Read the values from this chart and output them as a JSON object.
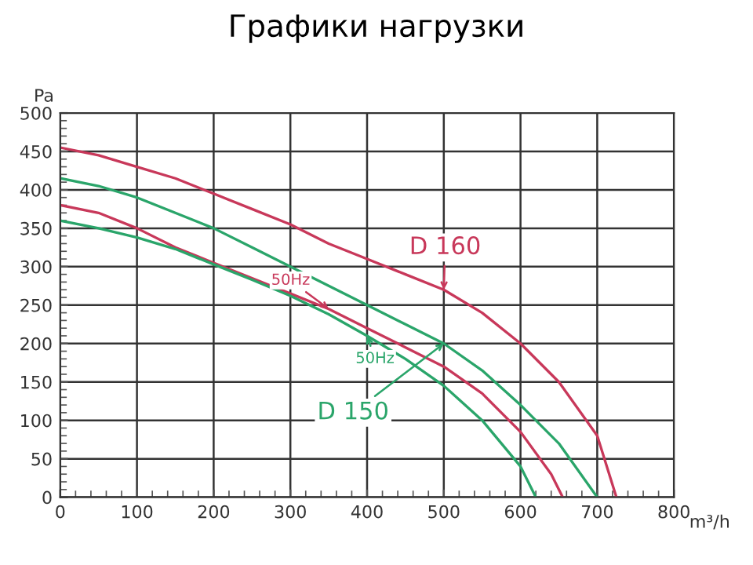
{
  "chart_data": {
    "type": "line",
    "title": "Графики нагрузки",
    "xlabel": "m³/h",
    "ylabel": "Pa",
    "series": [
      {
        "color": "#c8385a",
        "x": [
          0,
          50,
          100,
          150,
          200,
          250,
          300,
          350,
          400,
          450,
          500,
          550,
          600,
          650,
          700,
          725
        ],
        "values": [
          455,
          445,
          430,
          415,
          395,
          375,
          355,
          330,
          310,
          290,
          270,
          240,
          200,
          150,
          80,
          0
        ]
      },
      {
        "color": "#2aa56a",
        "x": [
          0,
          50,
          100,
          150,
          200,
          250,
          300,
          350,
          400,
          450,
          500,
          550,
          600,
          650,
          700
        ],
        "values": [
          415,
          405,
          390,
          370,
          350,
          325,
          300,
          275,
          250,
          225,
          200,
          165,
          120,
          70,
          0
        ]
      },
      {
        "color": "#c8385a",
        "x": [
          0,
          50,
          100,
          150,
          200,
          250,
          300,
          350,
          400,
          450,
          500,
          550,
          600,
          640,
          655
        ],
        "values": [
          380,
          370,
          350,
          325,
          305,
          285,
          265,
          245,
          220,
          195,
          170,
          135,
          85,
          30,
          0
        ]
      },
      {
        "color": "#2aa56a",
        "x": [
          0,
          50,
          100,
          150,
          200,
          250,
          300,
          350,
          400,
          450,
          500,
          550,
          600,
          620
        ],
        "values": [
          360,
          350,
          338,
          323,
          303,
          283,
          262,
          238,
          210,
          180,
          145,
          100,
          40,
          0
        ]
      }
    ],
    "annotations": [
      {
        "text": "D 160",
        "x": 500,
        "y": 270
      },
      {
        "text": "50Hz",
        "x": 350,
        "y": 245
      },
      {
        "text": "D 150",
        "x": 500,
        "y": 200
      },
      {
        "text": "50Hz",
        "x": 400,
        "y": 210
      }
    ],
    "xlim": [
      0,
      800
    ],
    "ylim": [
      0,
      500
    ],
    "xticks": [
      0,
      100,
      200,
      300,
      400,
      500,
      600,
      700,
      800
    ],
    "yticks": [
      0,
      50,
      100,
      150,
      200,
      250,
      300,
      350,
      400,
      450,
      500
    ],
    "grid": true,
    "marker": "none",
    "line_style": "solid"
  }
}
